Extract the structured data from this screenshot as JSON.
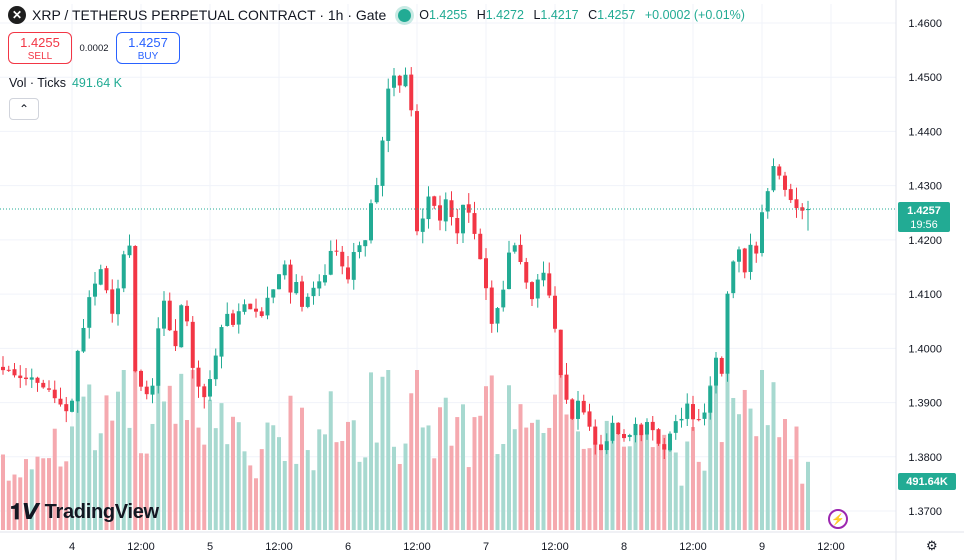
{
  "header": {
    "symbol_icon": "x-close-icon",
    "title": "XRP / TETHERUS PERPETUAL CONTRACT · 1h · Gate",
    "ohlc": {
      "o_label": "O",
      "o": "1.4255",
      "h_label": "H",
      "h": "1.4272",
      "l_label": "L",
      "l": "1.4217",
      "c_label": "C",
      "c": "1.4257",
      "change": "+0.0002 (+0.01%)"
    }
  },
  "trade": {
    "sell_price": "1.4255",
    "sell_label": "SELL",
    "spread": "0.0002",
    "buy_price": "1.4257",
    "buy_label": "BUY"
  },
  "volume_legend": {
    "label": "Vol · Ticks",
    "value": "491.64 K"
  },
  "branding": {
    "name": "TradingView"
  },
  "colors": {
    "up": "#22ab94",
    "down": "#f23645",
    "vol_up": "#a7d9d0",
    "vol_down": "#f5a9af"
  },
  "chart_data": {
    "type": "candlestick",
    "title": "XRP / TETHERUS PERPETUAL CONTRACT · 1h · Gate",
    "y_axis": {
      "side": "right",
      "ticks": [
        "1.4600",
        "1.4500",
        "1.4400",
        "1.4300",
        "1.4200",
        "1.4100",
        "1.4000",
        "1.3900",
        "1.3800",
        "1.3700"
      ],
      "range": [
        1.3665,
        1.4635
      ]
    },
    "x_axis": {
      "ticks": [
        {
          "label": "4",
          "index": 12
        },
        {
          "label": "12:00",
          "index": 24
        },
        {
          "label": "5",
          "index": 36
        },
        {
          "label": "12:00",
          "index": 48
        },
        {
          "label": "6",
          "index": 60
        },
        {
          "label": "12:00",
          "index": 72
        },
        {
          "label": "7",
          "index": 84
        },
        {
          "label": "12:00",
          "index": 96
        },
        {
          "label": "8",
          "index": 108
        },
        {
          "label": "12:00",
          "index": 120
        },
        {
          "label": "9",
          "index": 132
        },
        {
          "label": "12:00",
          "index": 144
        }
      ]
    },
    "last_price": {
      "value": 1.4257,
      "label": "1.4257",
      "countdown": "19:56"
    },
    "volume_label": "491.64K",
    "volume_max": 700,
    "anchors": [
      [
        0,
        1.3958
      ],
      [
        3,
        1.395
      ],
      [
        6,
        1.394
      ],
      [
        9,
        1.391
      ],
      [
        11,
        1.388
      ],
      [
        12,
        1.3898
      ],
      [
        13,
        1.3995
      ],
      [
        14,
        1.404
      ],
      [
        15,
        1.4095
      ],
      [
        16,
        1.412
      ],
      [
        17,
        1.4145
      ],
      [
        18,
        1.411
      ],
      [
        19,
        1.406
      ],
      [
        20,
        1.4115
      ],
      [
        21,
        1.417
      ],
      [
        22,
        1.4195
      ],
      [
        23,
        1.396
      ],
      [
        24,
        1.393
      ],
      [
        25,
        1.3915
      ],
      [
        26,
        1.393
      ],
      [
        27,
        1.4035
      ],
      [
        28,
        1.4085
      ],
      [
        29,
        1.4035
      ],
      [
        30,
        1.4
      ],
      [
        31,
        1.4085
      ],
      [
        32,
        1.4055
      ],
      [
        33,
        1.3965
      ],
      [
        34,
        1.3925
      ],
      [
        35,
        1.3915
      ],
      [
        36,
        1.394
      ],
      [
        37,
        1.3985
      ],
      [
        38,
        1.4035
      ],
      [
        39,
        1.4065
      ],
      [
        40,
        1.404
      ],
      [
        41,
        1.4065
      ],
      [
        42,
        1.408
      ],
      [
        43,
        1.407
      ],
      [
        44,
        1.407
      ],
      [
        45,
        1.4055
      ],
      [
        46,
        1.409
      ],
      [
        47,
        1.4105
      ],
      [
        48,
        1.4135
      ],
      [
        49,
        1.4155
      ],
      [
        50,
        1.41
      ],
      [
        51,
        1.4125
      ],
      [
        52,
        1.408
      ],
      [
        53,
        1.4095
      ],
      [
        54,
        1.4115
      ],
      [
        55,
        1.4125
      ],
      [
        56,
        1.4135
      ],
      [
        57,
        1.4175
      ],
      [
        58,
        1.418
      ],
      [
        59,
        1.4155
      ],
      [
        60,
        1.4125
      ],
      [
        61,
        1.4175
      ],
      [
        62,
        1.4185
      ],
      [
        63,
        1.4205
      ],
      [
        64,
        1.4265
      ],
      [
        65,
        1.4305
      ],
      [
        66,
        1.4385
      ],
      [
        67,
        1.4475
      ],
      [
        68,
        1.4505
      ],
      [
        69,
        1.449
      ],
      [
        70,
        1.4505
      ],
      [
        71,
        1.4435
      ],
      [
        72,
        1.4215
      ],
      [
        73,
        1.4245
      ],
      [
        74,
        1.4285
      ],
      [
        75,
        1.4265
      ],
      [
        76,
        1.423
      ],
      [
        77,
        1.4275
      ],
      [
        78,
        1.424
      ],
      [
        79,
        1.421
      ],
      [
        80,
        1.4265
      ],
      [
        81,
        1.4255
      ],
      [
        82,
        1.421
      ],
      [
        83,
        1.4165
      ],
      [
        84,
        1.4105
      ],
      [
        85,
        1.405
      ],
      [
        86,
        1.407
      ],
      [
        87,
        1.4105
      ],
      [
        88,
        1.4175
      ],
      [
        89,
        1.4195
      ],
      [
        90,
        1.4155
      ],
      [
        91,
        1.412
      ],
      [
        92,
        1.409
      ],
      [
        93,
        1.4125
      ],
      [
        94,
        1.414
      ],
      [
        95,
        1.4095
      ],
      [
        96,
        1.4035
      ],
      [
        97,
        1.395
      ],
      [
        98,
        1.39
      ],
      [
        99,
        1.3875
      ],
      [
        100,
        1.3905
      ],
      [
        101,
        1.388
      ],
      [
        102,
        1.3855
      ],
      [
        103,
        1.3825
      ],
      [
        104,
        1.3815
      ],
      [
        105,
        1.383
      ],
      [
        106,
        1.386
      ],
      [
        107,
        1.3845
      ],
      [
        108,
        1.384
      ],
      [
        109,
        1.3845
      ],
      [
        110,
        1.3855
      ],
      [
        111,
        1.3835
      ],
      [
        112,
        1.386
      ],
      [
        113,
        1.3845
      ],
      [
        114,
        1.3825
      ],
      [
        115,
        1.3815
      ],
      [
        116,
        1.3845
      ],
      [
        117,
        1.386
      ],
      [
        118,
        1.3875
      ],
      [
        119,
        1.3895
      ],
      [
        120,
        1.3875
      ],
      [
        121,
        1.387
      ],
      [
        122,
        1.388
      ],
      [
        123,
        1.3925
      ],
      [
        124,
        1.398
      ],
      [
        125,
        1.3955
      ],
      [
        126,
        1.4105
      ],
      [
        127,
        1.416
      ],
      [
        128,
        1.4185
      ],
      [
        129,
        1.4145
      ],
      [
        130,
        1.4195
      ],
      [
        131,
        1.417
      ],
      [
        132,
        1.4255
      ],
      [
        133,
        1.4295
      ],
      [
        134,
        1.4335
      ],
      [
        135,
        1.4315
      ],
      [
        136,
        1.429
      ],
      [
        137,
        1.427
      ],
      [
        138,
        1.426
      ],
      [
        139,
        1.4255
      ],
      [
        140,
        1.4257
      ]
    ]
  }
}
